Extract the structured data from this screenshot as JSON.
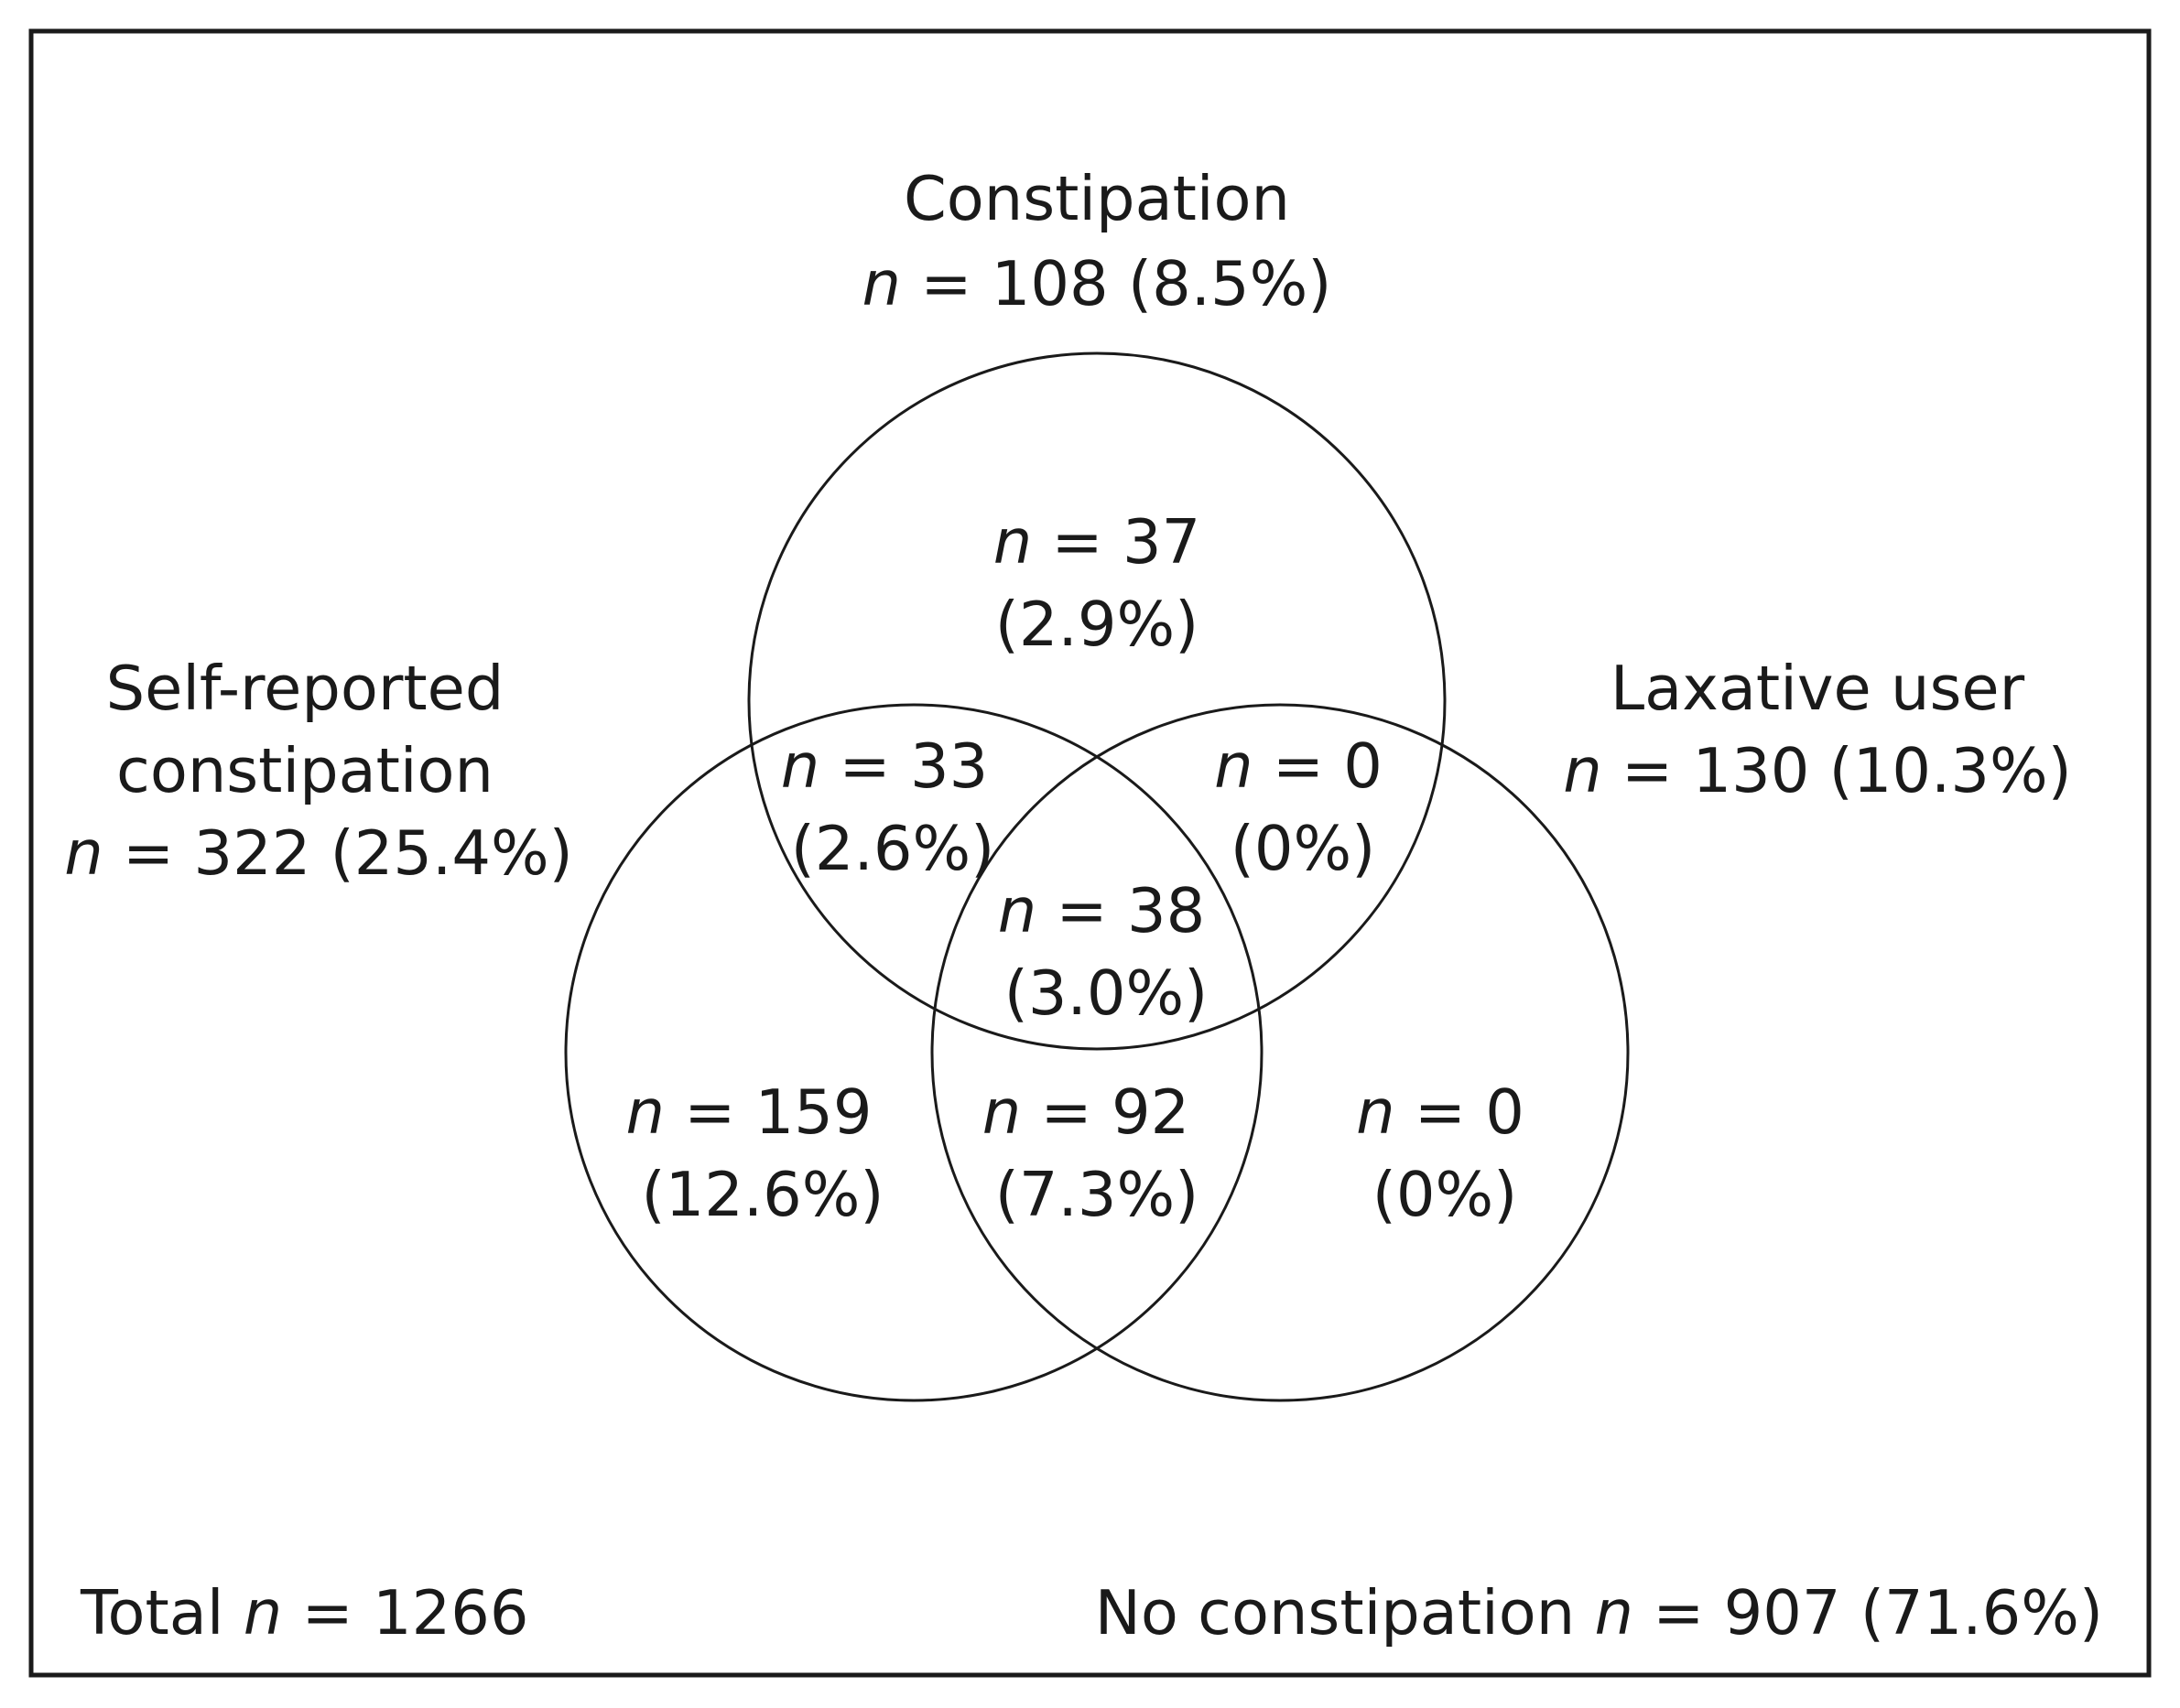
{
  "sets": {
    "constipation": {
      "name": "Constipation",
      "count": "108",
      "pct": "(8.5%)"
    },
    "self_reported": {
      "name_line1": "Self-reported",
      "name_line2": "constipation",
      "count": "322",
      "pct": "(25.4%)"
    },
    "laxative": {
      "name": "Laxative user",
      "count": "130",
      "pct": "(10.3%)"
    }
  },
  "regions": {
    "constipation_only": {
      "count": "37",
      "pct": "(2.9%)"
    },
    "constipation_self": {
      "count": "33",
      "pct": "(2.6%)"
    },
    "constipation_laxative": {
      "count": "0",
      "pct": "(0%)"
    },
    "all_three": {
      "count": "38",
      "pct": "(3.0%)"
    },
    "self_only": {
      "count": "159",
      "pct": "(12.6%)"
    },
    "self_laxative": {
      "count": "92",
      "pct": "(7.3%)"
    },
    "laxative_only": {
      "count": "0",
      "pct": "(0%)"
    }
  },
  "footer": {
    "total_label": "Total",
    "total_count": "1266",
    "none_label": "No constipation",
    "none_count": "907",
    "none_pct": "(71.6%)"
  },
  "symbols": {
    "n": "n",
    "eq": " = "
  }
}
